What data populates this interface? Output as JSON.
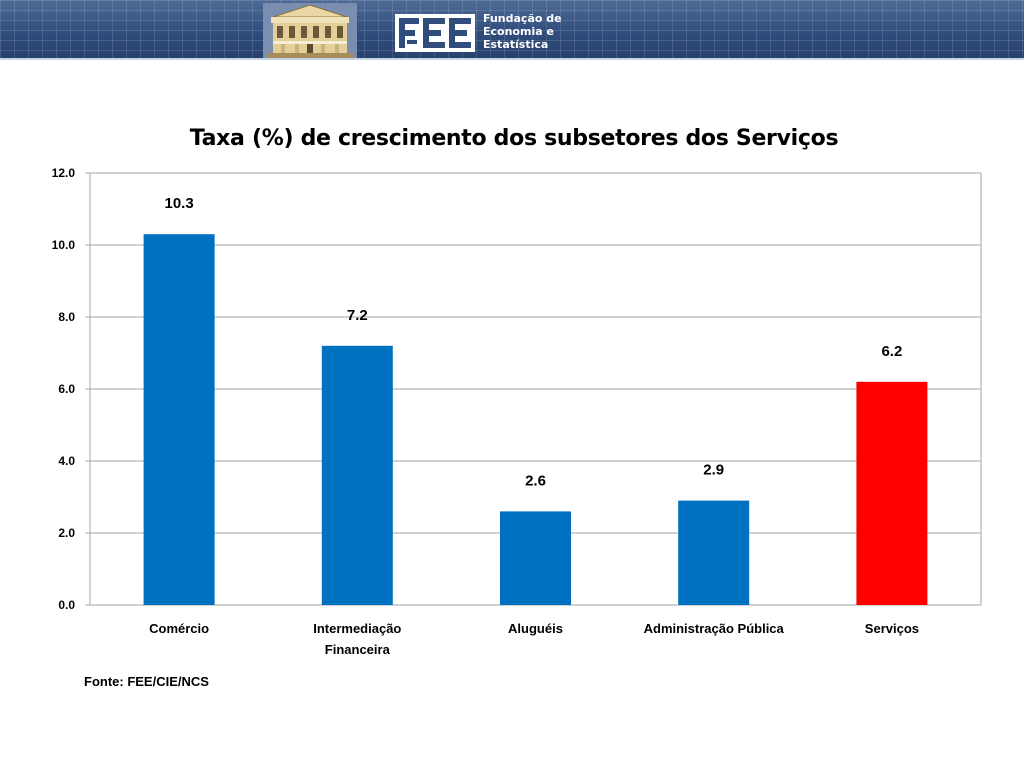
{
  "header": {
    "brand_lines": [
      "Fundação de",
      "Economia e",
      "Estatística"
    ],
    "background": "#2f4c7c"
  },
  "source_note": "Fonte: FEE/CIE/NCS",
  "chart_data": {
    "type": "bar",
    "title": "Taxa (%) de crescimento dos subsetores dos Serviços",
    "xlabel": "",
    "ylabel": "",
    "categories": [
      [
        "Comércio"
      ],
      [
        "Intermediação",
        "Financeira"
      ],
      [
        "Aluguéis"
      ],
      [
        "Administração Pública"
      ],
      [
        "Serviços"
      ]
    ],
    "values": [
      10.3,
      7.2,
      2.6,
      2.9,
      6.2
    ],
    "data_labels": [
      "10.3",
      "7.2",
      "2.6",
      "2.9",
      "6.2"
    ],
    "bar_colors": [
      "#0070c0",
      "#0070c0",
      "#0070c0",
      "#0070c0",
      "#ff0000"
    ],
    "ylim": [
      0,
      12
    ],
    "yticks": [
      "0.0",
      "2.0",
      "4.0",
      "6.0",
      "8.0",
      "10.0",
      "12.0"
    ],
    "grid": true,
    "legend": "none"
  }
}
